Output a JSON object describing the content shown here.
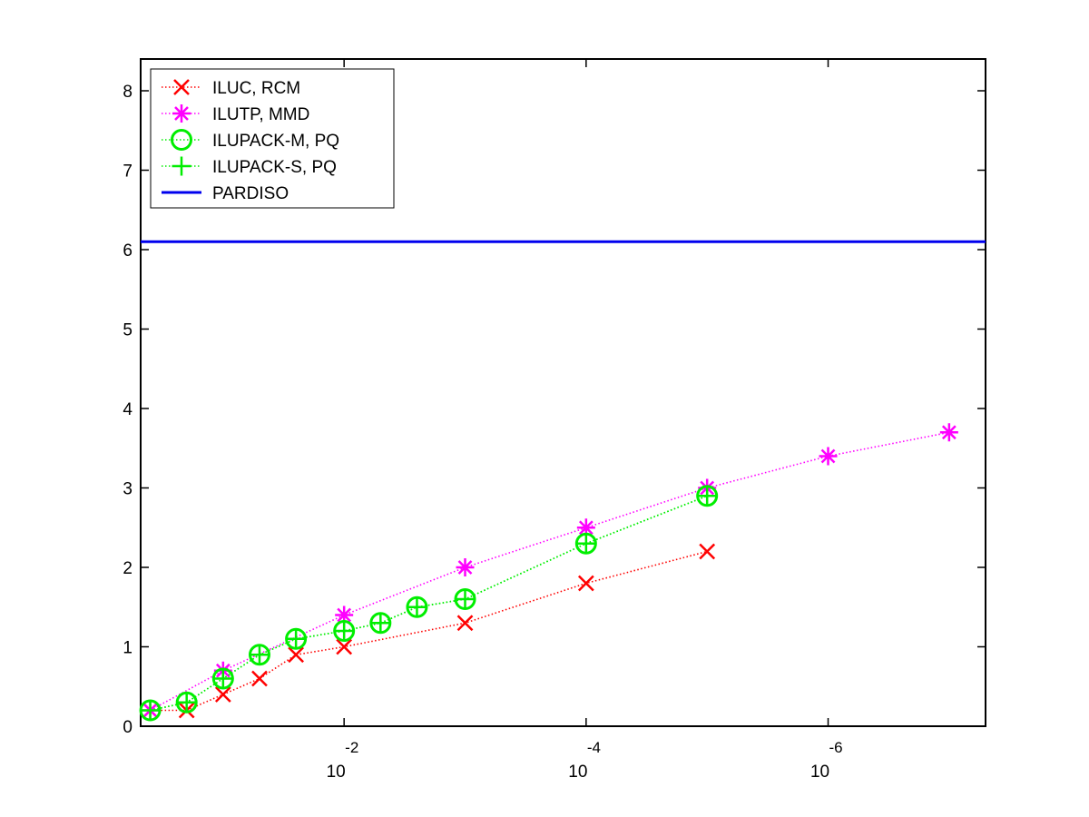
{
  "chart_data": {
    "type": "line",
    "title": "",
    "xlabel": "",
    "ylabel": "",
    "x_scale": "log",
    "x_reversed": true,
    "xlim": [
      0.48,
      5e-08
    ],
    "ylim": [
      0,
      8.4
    ],
    "xticks": [
      {
        "value": 0.01,
        "base": "10",
        "exponent": "-2"
      },
      {
        "value": 0.0001,
        "base": "10",
        "exponent": "-4"
      },
      {
        "value": 1e-06,
        "base": "10",
        "exponent": "-6"
      }
    ],
    "yticks": [
      "0",
      "1",
      "2",
      "3",
      "4",
      "5",
      "6",
      "7",
      "8"
    ],
    "grid": false,
    "legend_position": "top-left",
    "series": [
      {
        "name": "ILUC, RCM",
        "color": "#ff0000",
        "marker": "x",
        "line_style": "dotted",
        "x": [
          0.4,
          0.2,
          0.1,
          0.05,
          0.025,
          0.01,
          0.001,
          0.0001,
          1e-05
        ],
        "y": [
          0.2,
          0.2,
          0.4,
          0.6,
          0.9,
          1.0,
          1.3,
          1.8,
          2.2
        ]
      },
      {
        "name": "ILUTP, MMD",
        "color": "#ff00ff",
        "marker": "asterisk",
        "line_style": "dotted",
        "x": [
          0.4,
          0.1,
          0.01,
          0.001,
          0.0001,
          1e-05,
          1e-06,
          1e-07
        ],
        "y": [
          0.2,
          0.7,
          1.4,
          2.0,
          2.5,
          3.0,
          3.4,
          3.7
        ]
      },
      {
        "name": "ILUPACK-M, PQ",
        "color": "#00ee00",
        "marker": "circle",
        "line_style": "dotted",
        "x": [
          0.4,
          0.2,
          0.1,
          0.05,
          0.025,
          0.01,
          0.005,
          0.0025,
          0.001,
          0.0001,
          1e-05
        ],
        "y": [
          0.2,
          0.3,
          0.6,
          0.9,
          1.1,
          1.2,
          1.3,
          1.5,
          1.6,
          2.3,
          2.9
        ]
      },
      {
        "name": "ILUPACK-S, PQ",
        "color": "#00ee00",
        "marker": "plus",
        "line_style": "dotted",
        "x": [
          0.4,
          0.2,
          0.1,
          0.05,
          0.025,
          0.01,
          0.005,
          0.0025,
          0.001,
          0.0001,
          1e-05
        ],
        "y": [
          0.2,
          0.3,
          0.6,
          0.9,
          1.1,
          1.2,
          1.3,
          1.5,
          1.6,
          2.3,
          2.9
        ]
      },
      {
        "name": "PARDISO",
        "color": "#0000ee",
        "marker": "none",
        "line_style": "solid",
        "x": [
          0.48,
          5e-08
        ],
        "y": [
          6.1,
          6.1
        ]
      }
    ]
  }
}
